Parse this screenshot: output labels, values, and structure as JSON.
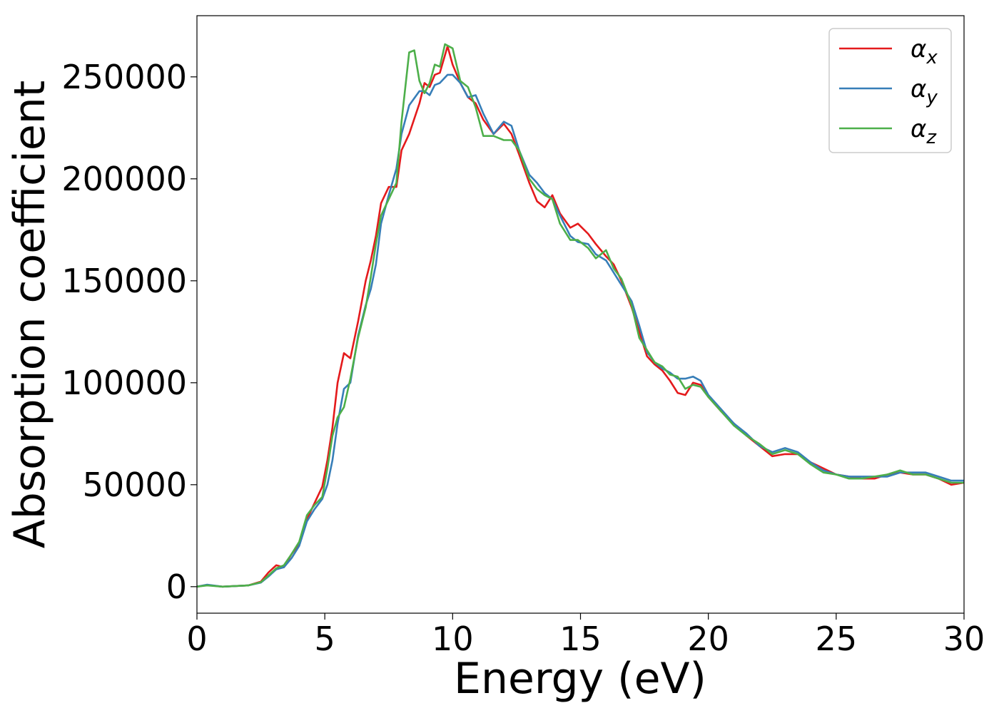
{
  "chart_data": {
    "type": "line",
    "title": "",
    "xlabel": "Energy (eV)",
    "ylabel": "Absorption coefficient",
    "xlim": [
      0,
      30
    ],
    "ylim": [
      -13000,
      280000
    ],
    "x_ticks": [
      "0",
      "5",
      "10",
      "15",
      "20",
      "25",
      "30"
    ],
    "y_ticks": [
      "0",
      "50000",
      "100000",
      "150000",
      "200000",
      "250000"
    ],
    "grid": false,
    "legend_position": "top-right",
    "series": [
      {
        "name": "α",
        "subscript": "x",
        "color": "#e41a1c",
        "points": [
          [
            0,
            0
          ],
          [
            0.4,
            800
          ],
          [
            1,
            0
          ],
          [
            2,
            600
          ],
          [
            2.5,
            2500
          ],
          [
            2.8,
            7000
          ],
          [
            3.1,
            10500
          ],
          [
            3.4,
            9500
          ],
          [
            3.7,
            16000
          ],
          [
            4.0,
            21000
          ],
          [
            4.3,
            33000
          ],
          [
            4.6,
            41000
          ],
          [
            4.9,
            49000
          ],
          [
            5.1,
            62000
          ],
          [
            5.3,
            78000
          ],
          [
            5.5,
            100000
          ],
          [
            5.75,
            114500
          ],
          [
            6.0,
            112000
          ],
          [
            6.3,
            130000
          ],
          [
            6.6,
            150000
          ],
          [
            6.8,
            160000
          ],
          [
            7.0,
            172000
          ],
          [
            7.2,
            188000
          ],
          [
            7.5,
            196000
          ],
          [
            7.8,
            196000
          ],
          [
            8.0,
            214000
          ],
          [
            8.3,
            222000
          ],
          [
            8.7,
            237000
          ],
          [
            8.9,
            247000
          ],
          [
            9.1,
            245000
          ],
          [
            9.3,
            251000
          ],
          [
            9.5,
            252000
          ],
          [
            9.8,
            265000
          ],
          [
            10.0,
            256000
          ],
          [
            10.3,
            247000
          ],
          [
            10.6,
            240000
          ],
          [
            10.9,
            237000
          ],
          [
            11.2,
            229000
          ],
          [
            11.6,
            222000
          ],
          [
            12.0,
            227000
          ],
          [
            12.3,
            222000
          ],
          [
            12.6,
            212000
          ],
          [
            13.0,
            198000
          ],
          [
            13.3,
            189000
          ],
          [
            13.6,
            186000
          ],
          [
            13.9,
            192000
          ],
          [
            14.2,
            183000
          ],
          [
            14.6,
            176000
          ],
          [
            14.9,
            178000
          ],
          [
            15.3,
            173000
          ],
          [
            15.6,
            168000
          ],
          [
            16.0,
            162000
          ],
          [
            16.3,
            158000
          ],
          [
            16.6,
            150000
          ],
          [
            17.0,
            137000
          ],
          [
            17.3,
            125000
          ],
          [
            17.6,
            113000
          ],
          [
            17.9,
            109000
          ],
          [
            18.2,
            106000
          ],
          [
            18.5,
            101000
          ],
          [
            18.8,
            95000
          ],
          [
            19.1,
            94000
          ],
          [
            19.4,
            100000
          ],
          [
            19.7,
            99000
          ],
          [
            20.0,
            93000
          ],
          [
            20.5,
            86000
          ],
          [
            21.0,
            80000
          ],
          [
            21.5,
            74000
          ],
          [
            22.0,
            69000
          ],
          [
            22.5,
            64000
          ],
          [
            23.0,
            65000
          ],
          [
            23.5,
            65000
          ],
          [
            24.0,
            61000
          ],
          [
            24.5,
            58000
          ],
          [
            25.0,
            55000
          ],
          [
            25.5,
            54000
          ],
          [
            26.0,
            53000
          ],
          [
            26.5,
            53000
          ],
          [
            27.0,
            55000
          ],
          [
            27.5,
            56000
          ],
          [
            28.0,
            55000
          ],
          [
            28.5,
            55000
          ],
          [
            29.0,
            53000
          ],
          [
            29.5,
            50000
          ],
          [
            30.0,
            51000
          ]
        ]
      },
      {
        "name": "α",
        "subscript": "y",
        "color": "#377eb8",
        "points": [
          [
            0,
            0
          ],
          [
            0.4,
            1000
          ],
          [
            1,
            0
          ],
          [
            2,
            600
          ],
          [
            2.5,
            2000
          ],
          [
            2.8,
            5000
          ],
          [
            3.1,
            8500
          ],
          [
            3.4,
            9500
          ],
          [
            3.7,
            14000
          ],
          [
            4.0,
            20000
          ],
          [
            4.3,
            32000
          ],
          [
            4.6,
            38000
          ],
          [
            4.9,
            43000
          ],
          [
            5.1,
            50000
          ],
          [
            5.3,
            62000
          ],
          [
            5.5,
            80000
          ],
          [
            5.75,
            97000
          ],
          [
            6.0,
            100000
          ],
          [
            6.3,
            123000
          ],
          [
            6.6,
            138000
          ],
          [
            6.8,
            146000
          ],
          [
            7.0,
            158000
          ],
          [
            7.2,
            178000
          ],
          [
            7.5,
            192000
          ],
          [
            7.8,
            205000
          ],
          [
            8.0,
            222000
          ],
          [
            8.3,
            236000
          ],
          [
            8.7,
            243000
          ],
          [
            8.9,
            243000
          ],
          [
            9.1,
            241000
          ],
          [
            9.3,
            246000
          ],
          [
            9.5,
            247000
          ],
          [
            9.8,
            251000
          ],
          [
            10.0,
            251000
          ],
          [
            10.3,
            247000
          ],
          [
            10.6,
            240000
          ],
          [
            10.9,
            241000
          ],
          [
            11.2,
            232000
          ],
          [
            11.6,
            222000
          ],
          [
            12.0,
            228000
          ],
          [
            12.3,
            226000
          ],
          [
            12.6,
            214000
          ],
          [
            13.0,
            202000
          ],
          [
            13.3,
            198000
          ],
          [
            13.6,
            193000
          ],
          [
            13.9,
            190000
          ],
          [
            14.2,
            182000
          ],
          [
            14.6,
            172000
          ],
          [
            14.9,
            169000
          ],
          [
            15.3,
            168000
          ],
          [
            15.6,
            163000
          ],
          [
            16.0,
            160000
          ],
          [
            16.3,
            154000
          ],
          [
            16.6,
            148000
          ],
          [
            17.0,
            140000
          ],
          [
            17.3,
            128000
          ],
          [
            17.6,
            115000
          ],
          [
            17.9,
            110000
          ],
          [
            18.2,
            107000
          ],
          [
            18.5,
            105000
          ],
          [
            18.8,
            102000
          ],
          [
            19.1,
            102000
          ],
          [
            19.4,
            103000
          ],
          [
            19.7,
            101000
          ],
          [
            20.0,
            94000
          ],
          [
            20.5,
            87000
          ],
          [
            21.0,
            80000
          ],
          [
            21.5,
            75000
          ],
          [
            22.0,
            69000
          ],
          [
            22.5,
            66000
          ],
          [
            23.0,
            68000
          ],
          [
            23.5,
            66000
          ],
          [
            24.0,
            61000
          ],
          [
            24.5,
            57000
          ],
          [
            25.0,
            55000
          ],
          [
            25.5,
            54000
          ],
          [
            26.0,
            54000
          ],
          [
            26.5,
            54000
          ],
          [
            27.0,
            54000
          ],
          [
            27.5,
            56000
          ],
          [
            28.0,
            56000
          ],
          [
            28.5,
            56000
          ],
          [
            29.0,
            54000
          ],
          [
            29.5,
            52000
          ],
          [
            30.0,
            52000
          ]
        ]
      },
      {
        "name": "α",
        "subscript": "z",
        "color": "#4daf4a",
        "points": [
          [
            0,
            0
          ],
          [
            0.4,
            600
          ],
          [
            1,
            0
          ],
          [
            2,
            600
          ],
          [
            2.5,
            2200
          ],
          [
            2.8,
            5500
          ],
          [
            3.1,
            9000
          ],
          [
            3.4,
            10500
          ],
          [
            3.7,
            16000
          ],
          [
            4.0,
            22000
          ],
          [
            4.3,
            35000
          ],
          [
            4.6,
            40000
          ],
          [
            4.9,
            44000
          ],
          [
            5.1,
            58000
          ],
          [
            5.3,
            74000
          ],
          [
            5.5,
            83000
          ],
          [
            5.75,
            88000
          ],
          [
            6.0,
            102000
          ],
          [
            6.3,
            122000
          ],
          [
            6.6,
            137000
          ],
          [
            6.8,
            152000
          ],
          [
            7.0,
            168000
          ],
          [
            7.2,
            182000
          ],
          [
            7.5,
            190000
          ],
          [
            7.8,
            198000
          ],
          [
            8.0,
            228000
          ],
          [
            8.3,
            262000
          ],
          [
            8.5,
            263000
          ],
          [
            8.7,
            248000
          ],
          [
            8.9,
            242000
          ],
          [
            9.1,
            247000
          ],
          [
            9.3,
            256000
          ],
          [
            9.5,
            255000
          ],
          [
            9.7,
            266000
          ],
          [
            10.0,
            264000
          ],
          [
            10.3,
            248000
          ],
          [
            10.6,
            245000
          ],
          [
            10.9,
            235000
          ],
          [
            11.2,
            221000
          ],
          [
            11.6,
            221000
          ],
          [
            12.0,
            219000
          ],
          [
            12.3,
            219000
          ],
          [
            12.6,
            214000
          ],
          [
            13.0,
            200000
          ],
          [
            13.3,
            195000
          ],
          [
            13.6,
            192000
          ],
          [
            13.9,
            190000
          ],
          [
            14.2,
            178000
          ],
          [
            14.6,
            170000
          ],
          [
            14.9,
            170000
          ],
          [
            15.3,
            166000
          ],
          [
            15.6,
            161000
          ],
          [
            16.0,
            165000
          ],
          [
            16.3,
            156000
          ],
          [
            16.6,
            151000
          ],
          [
            17.0,
            138000
          ],
          [
            17.3,
            122000
          ],
          [
            17.6,
            116000
          ],
          [
            17.9,
            110000
          ],
          [
            18.2,
            108000
          ],
          [
            18.5,
            104000
          ],
          [
            18.8,
            103000
          ],
          [
            19.1,
            97000
          ],
          [
            19.4,
            99000
          ],
          [
            19.7,
            98000
          ],
          [
            20.0,
            93000
          ],
          [
            20.5,
            86000
          ],
          [
            21.0,
            79000
          ],
          [
            21.5,
            74000
          ],
          [
            22.0,
            70000
          ],
          [
            22.5,
            65000
          ],
          [
            23.0,
            67000
          ],
          [
            23.5,
            65000
          ],
          [
            24.0,
            60000
          ],
          [
            24.5,
            56000
          ],
          [
            25.0,
            55000
          ],
          [
            25.5,
            53000
          ],
          [
            26.0,
            53000
          ],
          [
            26.5,
            54000
          ],
          [
            27.0,
            55000
          ],
          [
            27.5,
            57000
          ],
          [
            28.0,
            55000
          ],
          [
            28.5,
            55000
          ],
          [
            29.0,
            53000
          ],
          [
            29.5,
            51000
          ],
          [
            30.0,
            51000
          ]
        ]
      }
    ]
  }
}
